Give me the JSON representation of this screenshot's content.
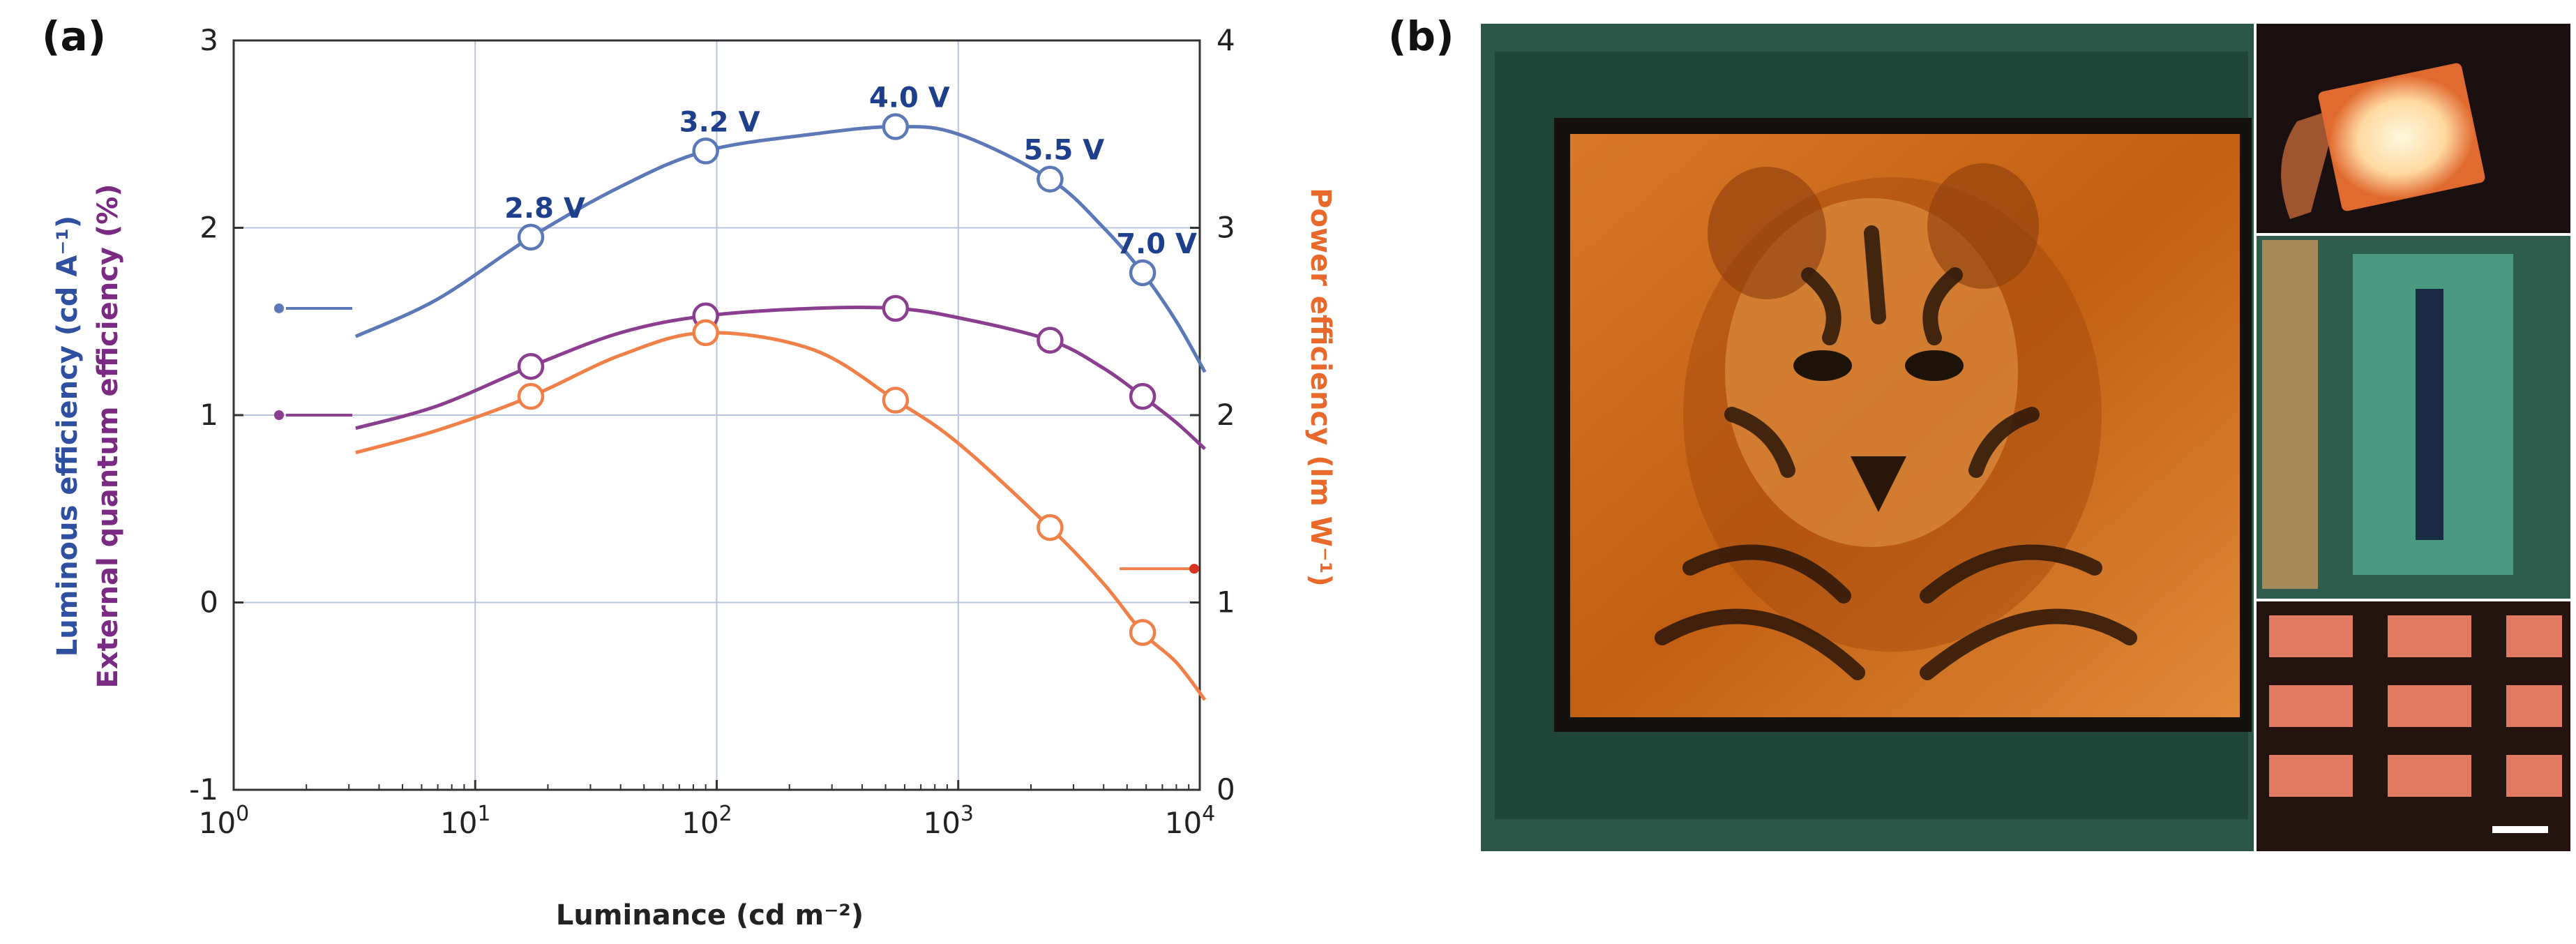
{
  "panels": {
    "a": "(a)",
    "b": "(b)"
  },
  "chart_data": {
    "type": "line",
    "xlabel": "Luminance (cd m⁻²)",
    "x_scale": "log",
    "xlim": [
      1,
      10000
    ],
    "x_ticks": [
      {
        "value": 1,
        "base": "10",
        "exp": "0"
      },
      {
        "value": 10,
        "base": "10",
        "exp": "1"
      },
      {
        "value": 100,
        "base": "10",
        "exp": "2"
      },
      {
        "value": 1000,
        "base": "10",
        "exp": "3"
      },
      {
        "value": 10000,
        "base": "10",
        "exp": "4"
      }
    ],
    "y_left": {
      "ylim": [
        -1,
        3
      ],
      "ticks": [
        "-1",
        "0",
        "1",
        "2",
        "3"
      ],
      "labels": [
        {
          "text": "Luminous efficiency (cd A⁻¹)",
          "color": "#2f4fa0"
        },
        {
          "text": "External quantum efficiency (%)",
          "color": "#7a2a82"
        }
      ]
    },
    "y_right": {
      "ylim": [
        0,
        4
      ],
      "ticks": [
        "0",
        "1",
        "2",
        "3",
        "4"
      ],
      "label": {
        "text": "Power efficiency (lm W⁻¹)",
        "color": "#e8692a"
      }
    },
    "grid": true,
    "series": [
      {
        "axis": "left",
        "color": "#5b79b7",
        "arrow": "left",
        "points": [
          [
            17,
            1.95
          ],
          [
            90,
            2.41
          ],
          [
            550,
            2.54
          ],
          [
            2400,
            2.26
          ],
          [
            5800,
            1.76
          ]
        ],
        "curve": [
          [
            3.2,
            1.42
          ],
          [
            7,
            1.62
          ],
          [
            17,
            1.95
          ],
          [
            40,
            2.22
          ],
          [
            90,
            2.41
          ],
          [
            250,
            2.5
          ],
          [
            550,
            2.54
          ],
          [
            1000,
            2.5
          ],
          [
            2400,
            2.26
          ],
          [
            4000,
            2.0
          ],
          [
            5800,
            1.76
          ],
          [
            8000,
            1.5
          ],
          [
            10500,
            1.23
          ]
        ]
      },
      {
        "axis": "left",
        "color": "#8b3e8f",
        "arrow": "left",
        "points": [
          [
            17,
            1.26
          ],
          [
            90,
            1.53
          ],
          [
            550,
            1.57
          ],
          [
            2400,
            1.4
          ],
          [
            5800,
            1.1
          ]
        ],
        "curve": [
          [
            3.2,
            0.93
          ],
          [
            7,
            1.05
          ],
          [
            17,
            1.26
          ],
          [
            40,
            1.44
          ],
          [
            90,
            1.53
          ],
          [
            250,
            1.57
          ],
          [
            550,
            1.57
          ],
          [
            1000,
            1.52
          ],
          [
            2400,
            1.4
          ],
          [
            4000,
            1.25
          ],
          [
            5800,
            1.1
          ],
          [
            8000,
            0.96
          ],
          [
            10500,
            0.82
          ]
        ]
      },
      {
        "axis": "right",
        "color": "#f08048",
        "arrow": "right",
        "points": [
          [
            17,
            2.1
          ],
          [
            90,
            2.44
          ],
          [
            550,
            2.08
          ],
          [
            2400,
            1.4
          ],
          [
            5800,
            0.84
          ]
        ],
        "curve": [
          [
            3.2,
            1.8
          ],
          [
            7,
            1.92
          ],
          [
            17,
            2.1
          ],
          [
            40,
            2.32
          ],
          [
            90,
            2.44
          ],
          [
            250,
            2.35
          ],
          [
            550,
            2.08
          ],
          [
            1000,
            1.85
          ],
          [
            2400,
            1.4
          ],
          [
            4000,
            1.1
          ],
          [
            5800,
            0.84
          ],
          [
            8000,
            0.68
          ],
          [
            10500,
            0.48
          ]
        ]
      }
    ],
    "annotations": [
      {
        "text": "2.8 V",
        "x": 17,
        "y": 1.95
      },
      {
        "text": "3.2 V",
        "x": 90,
        "y": 2.41
      },
      {
        "text": "4.0 V",
        "x": 550,
        "y": 2.54
      },
      {
        "text": "5.5 V",
        "x": 2400,
        "y": 2.26
      },
      {
        "text": "7.0 V",
        "x": 5800,
        "y": 1.76
      }
    ]
  },
  "photo": {
    "colors": {
      "frame": "#2f5a4a",
      "board": "#3f7d69",
      "display": "#c86a14",
      "dark": "#1a1410"
    }
  }
}
